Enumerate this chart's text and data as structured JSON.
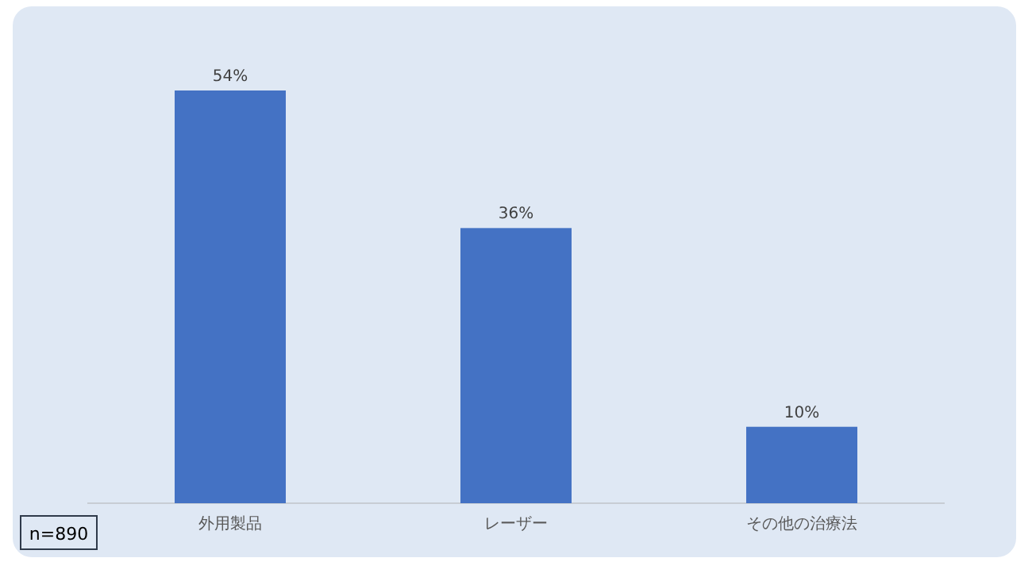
{
  "chart_data": {
    "type": "bar",
    "categories": [
      "外用製品",
      "レーザー",
      "その他の治療法"
    ],
    "values": [
      54,
      36,
      10
    ],
    "value_labels": [
      "54%",
      "36%",
      "10%"
    ],
    "color": "#4472c4",
    "annotations": [
      "n=890"
    ]
  }
}
